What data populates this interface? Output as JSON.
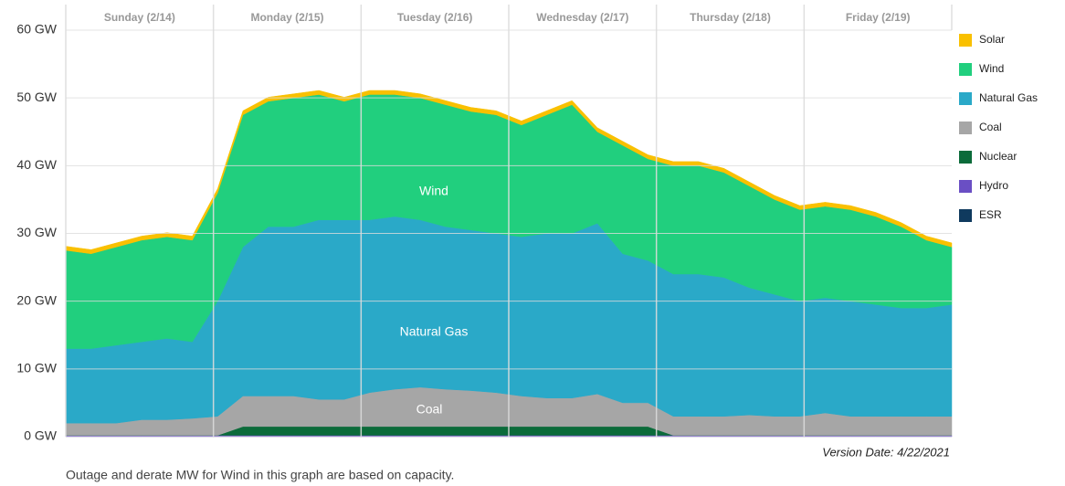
{
  "chart_data": {
    "type": "stacked_area",
    "categories": [
      "Sunday (2/14)",
      "Monday (2/15)",
      "Tuesday (2/16)",
      "Wednesday (2/17)",
      "Thursday (2/18)",
      "Friday (2/19)"
    ],
    "ylim": [
      0,
      60
    ],
    "yticks": [
      {
        "value": 0,
        "label": "0 GW"
      },
      {
        "value": 10,
        "label": "10 GW"
      },
      {
        "value": 20,
        "label": "20 GW"
      },
      {
        "value": 30,
        "label": "30 GW"
      },
      {
        "value": 40,
        "label": "40 GW"
      },
      {
        "value": 50,
        "label": "50 GW"
      },
      {
        "value": 60,
        "label": "60 GW"
      }
    ],
    "grid": true,
    "series": [
      {
        "name": "ESR",
        "color": "#0f3a5e",
        "values": [
          [
            0,
            0,
            0,
            0,
            0,
            0
          ],
          [
            0,
            0,
            0,
            0,
            0,
            0
          ],
          [
            0,
            0,
            0,
            0,
            0,
            0
          ],
          [
            0,
            0,
            0,
            0,
            0,
            0
          ],
          [
            0,
            0,
            0,
            0,
            0,
            0
          ],
          [
            0,
            0,
            0,
            0,
            0,
            0
          ]
        ]
      },
      {
        "name": "Hydro",
        "color": "#6a4fc4",
        "values": [
          [
            0.2,
            0.2,
            0.2,
            0.2,
            0.2,
            0.2
          ],
          [
            0.2,
            0.2,
            0.2,
            0.2,
            0.2,
            0.2
          ],
          [
            0.2,
            0.2,
            0.2,
            0.2,
            0.2,
            0.2
          ],
          [
            0.2,
            0.2,
            0.2,
            0.2,
            0.2,
            0.2
          ],
          [
            0.2,
            0.2,
            0.2,
            0.2,
            0.2,
            0.2
          ],
          [
            0.2,
            0.2,
            0.2,
            0.2,
            0.2,
            0.2
          ]
        ]
      },
      {
        "name": "Nuclear",
        "color": "#0b6b3a",
        "values": [
          [
            0,
            0,
            0,
            0,
            0,
            0
          ],
          [
            0,
            1.3,
            1.3,
            1.3,
            1.3,
            1.3
          ],
          [
            1.3,
            1.3,
            1.3,
            1.3,
            1.3,
            1.3
          ],
          [
            1.3,
            1.3,
            1.3,
            1.3,
            1.3,
            1.3
          ],
          [
            0,
            0,
            0,
            0,
            0,
            0
          ],
          [
            0,
            0,
            0,
            0,
            0,
            0
          ]
        ]
      },
      {
        "name": "Coal",
        "color": "#a6a6a6",
        "values": [
          [
            1.8,
            1.8,
            1.8,
            2.3,
            2.3,
            2.5
          ],
          [
            2.8,
            4.5,
            4.5,
            4.5,
            4,
            4
          ],
          [
            5,
            5.5,
            5.8,
            5.5,
            5.3,
            5
          ],
          [
            4.5,
            4.2,
            4.2,
            4.8,
            3.5,
            3.5
          ],
          [
            2.8,
            2.8,
            2.8,
            3,
            2.8,
            2.8
          ],
          [
            3.3,
            2.8,
            2.8,
            2.8,
            2.8,
            2.8
          ]
        ]
      },
      {
        "name": "Natural Gas",
        "color": "#2aa9c8",
        "values": [
          [
            11,
            11,
            11.5,
            11.5,
            12,
            11.3
          ],
          [
            17,
            22,
            25,
            25,
            26.5,
            26.5
          ],
          [
            25.5,
            25.5,
            24.7,
            24,
            23.7,
            23.5
          ],
          [
            23.5,
            24.3,
            24.3,
            25.2,
            22,
            21
          ],
          [
            21,
            21,
            20.5,
            18.8,
            18,
            17
          ],
          [
            17,
            17,
            16.5,
            16,
            16,
            16.5
          ]
        ]
      },
      {
        "name": "Wind",
        "color": "#21cf7e",
        "values": [
          [
            14.5,
            14,
            14.5,
            15,
            15,
            15
          ],
          [
            16,
            19.5,
            18.5,
            19,
            18.5,
            17.5
          ],
          [
            18.5,
            18,
            18,
            18,
            17.5,
            17.5
          ],
          [
            16.5,
            17.5,
            19,
            13.5,
            16,
            15
          ],
          [
            16,
            16,
            15.5,
            15,
            14,
            13.5
          ],
          [
            13.5,
            13.5,
            13,
            12,
            10,
            8.5
          ]
        ]
      },
      {
        "name": "Solar",
        "color": "#f9c000",
        "values": [
          [
            0.6,
            0.6,
            0.6,
            0.6,
            0.6,
            0.6
          ],
          [
            0.6,
            0.6,
            0.6,
            0.6,
            0.6,
            0.6
          ],
          [
            0.6,
            0.6,
            0.6,
            0.6,
            0.6,
            0.6
          ],
          [
            0.6,
            0.6,
            0.6,
            0.6,
            0.6,
            0.6
          ],
          [
            0.6,
            0.6,
            0.6,
            0.6,
            0.6,
            0.6
          ],
          [
            0.6,
            0.6,
            0.6,
            0.6,
            0.6,
            0.6
          ]
        ]
      }
    ],
    "annotations": [
      "Wind",
      "Natural Gas",
      "Coal"
    ],
    "version_date": "Version Date: 4/22/2021",
    "footnote": "Outage and derate MW for Wind in this graph are based on capacity."
  }
}
